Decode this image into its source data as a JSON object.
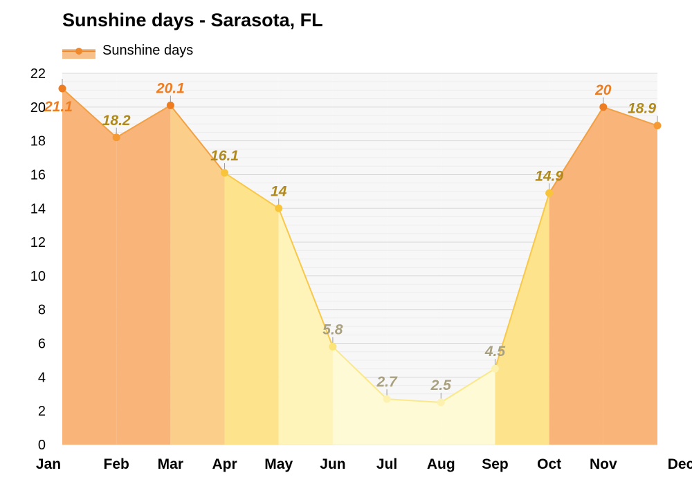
{
  "title": "Sunshine days - Sarasota, FL",
  "legend_label": "Sunshine days",
  "colors": {
    "line": "#ee8a2d",
    "legend_fill": "#f7c08a"
  },
  "chart_data": {
    "type": "area",
    "title": "Sunshine days - Sarasota, FL",
    "xlabel": "",
    "ylabel": "",
    "categories": [
      "Jan",
      "Feb",
      "Mar",
      "Apr",
      "May",
      "Jun",
      "Jul",
      "Aug",
      "Sep",
      "Oct",
      "Nov",
      "Dec"
    ],
    "series": [
      {
        "name": "Sunshine days",
        "values": [
          21.1,
          18.2,
          20.1,
          16.1,
          14,
          5.8,
          2.7,
          2.5,
          4.5,
          14.9,
          20,
          18.9
        ]
      }
    ],
    "data_labels": [
      "21.1",
      "18.2",
      "20.1",
      "16.1",
      "14",
      "5.8",
      "2.7",
      "2.5",
      "4.5",
      "14.9",
      "20",
      "18.9"
    ],
    "ylim": [
      0,
      22
    ],
    "yticks": [
      0,
      2,
      4,
      6,
      8,
      10,
      12,
      14,
      16,
      18,
      20,
      22
    ],
    "grid": true,
    "legend": "top-left"
  }
}
